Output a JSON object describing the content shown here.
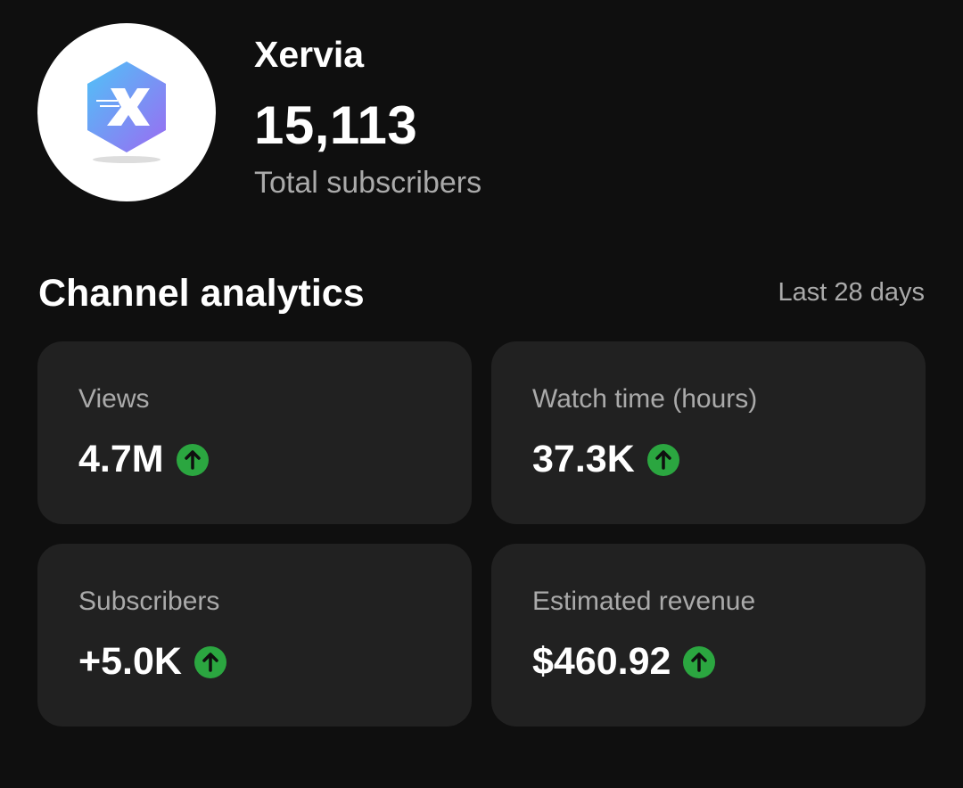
{
  "channel": {
    "name": "Xervia",
    "subscribers": "15,113",
    "subscribers_label": "Total subscribers"
  },
  "analytics": {
    "title": "Channel analytics",
    "period": "Last 28 days",
    "cards": [
      {
        "label": "Views",
        "value": "4.7M"
      },
      {
        "label": "Watch time (hours)",
        "value": "37.3K"
      },
      {
        "label": "Subscribers",
        "value": "+5.0K"
      },
      {
        "label": "Estimated revenue",
        "value": "$460.92"
      }
    ]
  }
}
